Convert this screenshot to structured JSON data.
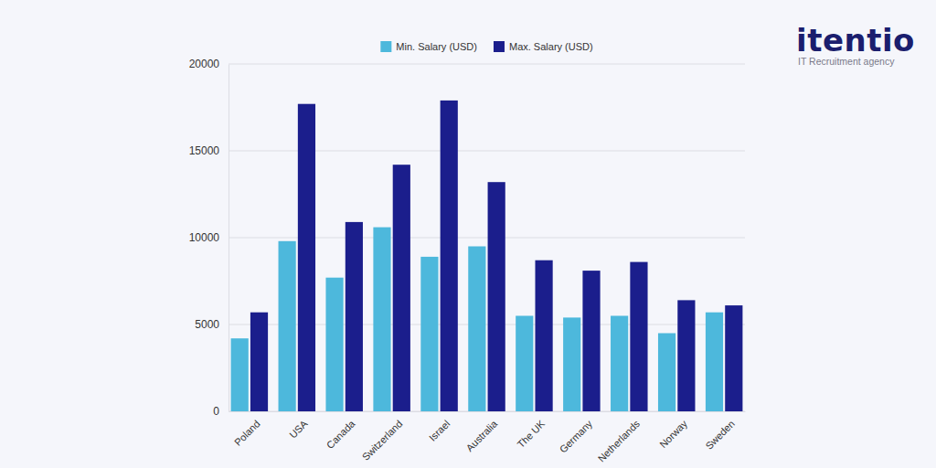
{
  "chart_data": {
    "type": "bar",
    "categories": [
      "Poland",
      "USA",
      "Canada",
      "Switzerland",
      "Israel",
      "Australia",
      "The UK",
      "Germany",
      "Netherlands",
      "Norway",
      "Sweden"
    ],
    "series": [
      {
        "name": "Min. Salary (USD)",
        "color": "#4db8dc",
        "values": [
          4200,
          9800,
          7700,
          10600,
          8900,
          9500,
          5500,
          5400,
          5500,
          4500,
          5700
        ]
      },
      {
        "name": "Max. Salary (USD)",
        "color": "#1b1e8c",
        "values": [
          5700,
          17700,
          10900,
          14200,
          17900,
          13200,
          8700,
          8100,
          8600,
          6400,
          6100
        ]
      }
    ],
    "ylim": [
      0,
      20000
    ],
    "yticks": [
      0,
      5000,
      10000,
      15000,
      20000
    ],
    "grid": true,
    "legend": "top",
    "annotations": [
      "itentio",
      "IT Recruitment agency"
    ]
  }
}
